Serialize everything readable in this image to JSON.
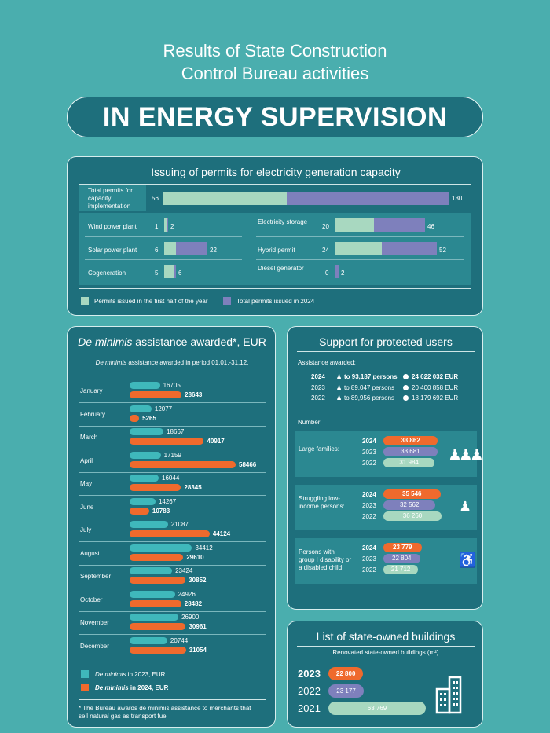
{
  "header": {
    "title_line1": "Results of State Construction",
    "title_line2": "Control Bureau activities",
    "banner": "IN ENERGY SUPERVISION"
  },
  "colors": {
    "background": "#4aaeae",
    "panel": "#1e6f7c",
    "green": "#a8d8c0",
    "purple": "#7e80bc",
    "teal": "#3fb8bb",
    "orange": "#ef6a2d"
  },
  "permits": {
    "title": "Issuing of permits for electricity generation capacity",
    "total": {
      "label": "Total permits for capacity implementation",
      "first_half": 56,
      "total": 130
    },
    "items": [
      {
        "label": "Wind power plant",
        "first_half": 1,
        "total": 2
      },
      {
        "label": "Electricity storage",
        "first_half": 20,
        "total": 46
      },
      {
        "label": "Solar power plant",
        "first_half": 6,
        "total": 22
      },
      {
        "label": "Hybrid permit",
        "first_half": 24,
        "total": 52
      },
      {
        "label": "Cogeneration",
        "first_half": 5,
        "total": 6
      },
      {
        "label": "Diesel generator",
        "first_half": 0,
        "total": 2
      }
    ],
    "legend_first_half": "Permits issued in the first half of the year",
    "legend_total": "Total permits issued in 2024"
  },
  "deminimis": {
    "title_italic": "De minimis",
    "title_rest": " assistance awarded*, EUR",
    "subtitle_italic": "De minimis",
    "subtitle_rest": " assistance awarded in period 01.01.-31.12.",
    "legend_2023": " in 2023, EUR",
    "legend_2024": " in 2024, EUR",
    "legend_italic": "De minimis",
    "footnote": "* The Bureau awards de minimis assistance to merchants that sell natural gas as transport fuel"
  },
  "chart_data": [
    {
      "type": "bar",
      "title": "Issuing of permits for electricity generation capacity",
      "categories": [
        "Total permits for capacity implementation",
        "Wind power plant",
        "Electricity storage",
        "Solar power plant",
        "Hybrid permit",
        "Cogeneration",
        "Diesel generator"
      ],
      "series": [
        {
          "name": "Permits issued in the first half of the year",
          "values": [
            56,
            1,
            20,
            6,
            24,
            5,
            0
          ]
        },
        {
          "name": "Total permits issued in 2024",
          "values": [
            130,
            2,
            46,
            22,
            52,
            6,
            2
          ]
        }
      ]
    },
    {
      "type": "bar",
      "title": "De minimis assistance awarded*, EUR",
      "categories": [
        "January",
        "February",
        "March",
        "April",
        "May",
        "June",
        "July",
        "August",
        "September",
        "October",
        "November",
        "December"
      ],
      "series": [
        {
          "name": "De minimis in 2023, EUR",
          "values": [
            16705,
            12077,
            18667,
            17159,
            16044,
            14267,
            21087,
            34412,
            23424,
            24926,
            26900,
            20744
          ]
        },
        {
          "name": "De minimis in 2024, EUR",
          "values": [
            28643,
            5265,
            40917,
            58466,
            28345,
            10783,
            44124,
            29610,
            30852,
            28482,
            30961,
            31054
          ]
        }
      ]
    },
    {
      "type": "bar",
      "title": "Support for protected users",
      "categories": [
        "Large families:",
        "Struggling low-income persons:",
        "Persons with group I disability or a disabled child"
      ],
      "series": [
        {
          "name": "2024",
          "values": [
            33862,
            35546,
            23779
          ]
        },
        {
          "name": "2023",
          "values": [
            33681,
            32562,
            22804
          ]
        },
        {
          "name": "2022",
          "values": [
            31984,
            36260,
            21712
          ]
        }
      ]
    },
    {
      "type": "bar",
      "title": "List of state-owned buildings",
      "subtitle": "Renovated state-owned buildings (m²)",
      "categories": [
        "2023",
        "2022",
        "2021"
      ],
      "values": [
        22800,
        23177,
        63769
      ]
    }
  ],
  "support": {
    "title": "Support for protected users",
    "assistance_label": "Assistance awarded:",
    "rows": [
      {
        "year": "2024",
        "persons": "to 93,187 persons",
        "eur": "24 622 032 EUR"
      },
      {
        "year": "2023",
        "persons": "to 89,047 persons",
        "eur": "20 400 858 EUR"
      },
      {
        "year": "2022",
        "persons": "to 89,956 persons",
        "eur": "18 179 692 EUR"
      }
    ],
    "number_label": "Number:",
    "groups": [
      {
        "label": "Large families:",
        "values": [
          {
            "year": "2024",
            "value": "33 862"
          },
          {
            "year": "2023",
            "value": "33 681"
          },
          {
            "year": "2022",
            "value": "31 984"
          }
        ]
      },
      {
        "label": "Struggling low-income persons:",
        "values": [
          {
            "year": "2024",
            "value": "35 546"
          },
          {
            "year": "2023",
            "value": "32 562"
          },
          {
            "year": "2022",
            "value": "36 260"
          }
        ]
      },
      {
        "label": "Persons with group I disability or a disabled child",
        "values": [
          {
            "year": "2024",
            "value": "23 779"
          },
          {
            "year": "2023",
            "value": "22 804"
          },
          {
            "year": "2022",
            "value": "21 712"
          }
        ]
      }
    ]
  },
  "buildings": {
    "title": "List of state-owned buildings",
    "subtitle": "Renovated state-owned buildings (m²)",
    "rows": [
      {
        "year": "2023",
        "value": "22 800"
      },
      {
        "year": "2022",
        "value": "23 177"
      },
      {
        "year": "2021",
        "value": "63 769"
      }
    ]
  }
}
